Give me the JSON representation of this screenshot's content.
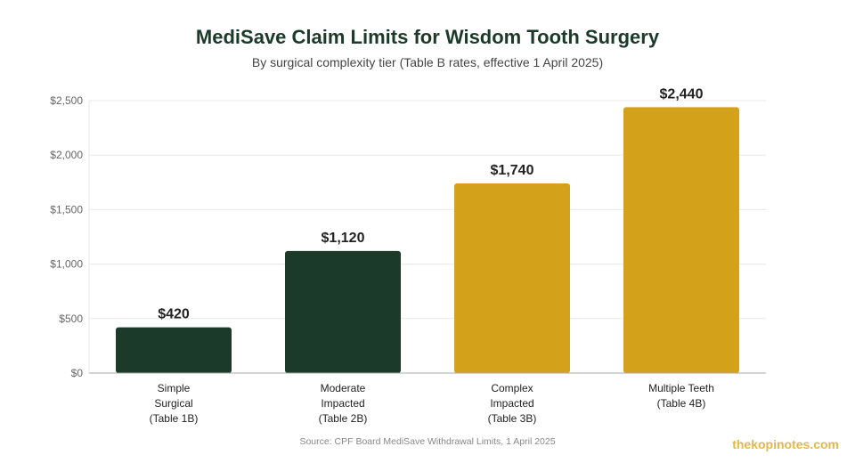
{
  "chart_data": {
    "type": "bar",
    "title": "MediSave Claim Limits for Wisdom Tooth Surgery",
    "subtitle": "By surgical complexity tier (Table B rates, effective 1 April 2025)",
    "categories": [
      [
        "Simple",
        "Surgical",
        "(Table 1B)"
      ],
      [
        "Moderate",
        "Impacted",
        "(Table 2B)"
      ],
      [
        "Complex",
        "Impacted",
        "(Table 3B)"
      ],
      [
        "Multiple Teeth",
        "(Table 4B)"
      ]
    ],
    "values": [
      420,
      1120,
      1740,
      2440
    ],
    "value_labels": [
      "$420",
      "$1,120",
      "$1,740",
      "$2,440"
    ],
    "bar_colors": [
      "#1b3a2a",
      "#1b3a2a",
      "#d4a21a",
      "#d4a21a"
    ],
    "ylim": [
      0,
      2500
    ],
    "yticks": [
      0,
      500,
      1000,
      1500,
      2000,
      2500
    ],
    "ytick_labels": [
      "$0",
      "$500",
      "$1,000",
      "$1,500",
      "$2,000",
      "$2,500"
    ],
    "xlabel": "",
    "ylabel": "",
    "grid": true,
    "legend": "none",
    "source": "Source: CPF Board MediSave Withdrawal Limits, 1 April 2025"
  },
  "watermark": "thekopinotes.com",
  "colors": {
    "title": "#1b3a2a",
    "watermark": "#e3b84a",
    "grid": "#e8e8e8",
    "axis": "#aaaaaa"
  }
}
